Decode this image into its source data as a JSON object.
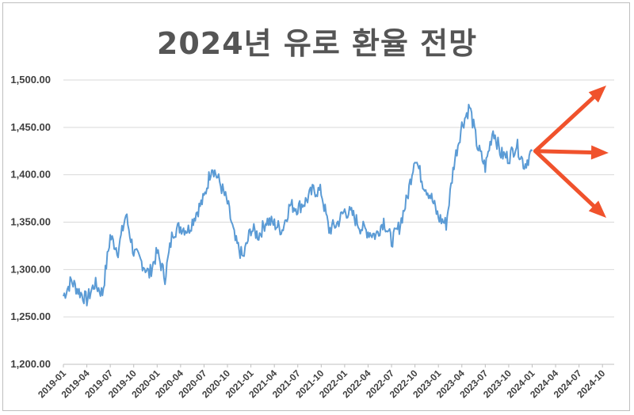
{
  "chart_data": {
    "type": "line",
    "title": "2024년 유로 환율 전망",
    "xlabel": "",
    "ylabel": "",
    "ylim": [
      1200,
      1500
    ],
    "yticks": [
      "1,200.00",
      "1,250.00",
      "1,300.00",
      "1,350.00",
      "1,400.00",
      "1,450.00",
      "1,500.00"
    ],
    "xticks": [
      "2019-01",
      "2019-04",
      "2019-07",
      "2019-10",
      "2020-01",
      "2020-04",
      "2020-07",
      "2020-10",
      "2021-01",
      "2021-04",
      "2021-07",
      "2021-10",
      "2022-01",
      "2022-04",
      "2022-07",
      "2022-10",
      "2023-01",
      "2023-04",
      "2023-07",
      "2023-10",
      "2024-01",
      "2024-04",
      "2024-07",
      "2024-10"
    ],
    "grid": "horizontal",
    "series": [
      {
        "color": "#5b9bd5",
        "x": [
          "2019-01",
          "2019-02",
          "2019-03",
          "2019-04",
          "2019-05",
          "2019-06",
          "2019-07",
          "2019-08",
          "2019-09",
          "2019-10",
          "2019-11",
          "2019-12",
          "2020-01",
          "2020-02",
          "2020-03",
          "2020-04",
          "2020-05",
          "2020-06",
          "2020-07",
          "2020-08",
          "2020-09",
          "2020-10",
          "2020-11",
          "2020-12",
          "2021-01",
          "2021-02",
          "2021-03",
          "2021-04",
          "2021-05",
          "2021-06",
          "2021-07",
          "2021-08",
          "2021-09",
          "2021-10",
          "2021-11",
          "2021-12",
          "2022-01",
          "2022-02",
          "2022-03",
          "2022-04",
          "2022-05",
          "2022-06",
          "2022-07",
          "2022-08",
          "2022-09",
          "2022-10",
          "2022-11",
          "2022-12",
          "2023-01",
          "2023-02",
          "2023-03",
          "2023-04",
          "2023-05",
          "2023-06",
          "2023-07",
          "2023-08",
          "2023-09",
          "2023-10",
          "2023-11",
          "2023-12",
          "2024-01"
        ],
        "values": [
          1272,
          1288,
          1277,
          1268,
          1285,
          1275,
          1335,
          1320,
          1358,
          1318,
          1308,
          1295,
          1318,
          1292,
          1340,
          1345,
          1342,
          1360,
          1375,
          1410,
          1392,
          1370,
          1330,
          1312,
          1343,
          1336,
          1352,
          1348,
          1342,
          1368,
          1365,
          1372,
          1384,
          1382,
          1342,
          1348,
          1362,
          1358,
          1345,
          1340,
          1336,
          1352,
          1330,
          1345,
          1375,
          1420,
          1392,
          1378,
          1355,
          1348,
          1412,
          1452,
          1472,
          1430,
          1408,
          1448,
          1422,
          1418,
          1432,
          1410,
          1425
        ]
      }
    ],
    "annotations": [
      {
        "type": "arrow",
        "direction": "up",
        "color": "#f0522c"
      },
      {
        "type": "arrow",
        "direction": "flat",
        "color": "#f0522c"
      },
      {
        "type": "arrow",
        "direction": "down",
        "color": "#f0522c"
      }
    ]
  }
}
